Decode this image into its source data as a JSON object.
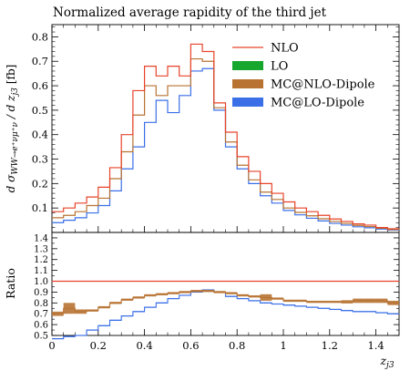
{
  "chart_data": {
    "type": "line",
    "title": "Normalized average rapidity of the third jet",
    "xlabel": "z_j3",
    "ylabel": "d σ_WW→e+νμ+ν / d z_j3 [fb]",
    "ratio_ylabel": "Ratio",
    "xlim": [
      0,
      1.5
    ],
    "ylim": [
      0,
      0.85
    ],
    "ratio_ylim": [
      0.5,
      1.45
    ],
    "x_ticks": [
      "0",
      "0.2",
      "0.4",
      "0.6",
      "0.8",
      "1",
      "1.2",
      "1.4"
    ],
    "x_tick_values": [
      0,
      0.2,
      0.4,
      0.6,
      0.8,
      1.0,
      1.2,
      1.4
    ],
    "y_ticks": [
      "0.1",
      "0.2",
      "0.3",
      "0.4",
      "0.5",
      "0.6",
      "0.7",
      "0.8"
    ],
    "y_tick_values": [
      0.1,
      0.2,
      0.3,
      0.4,
      0.5,
      0.6,
      0.7,
      0.8
    ],
    "ratio_ticks": [
      "0.5",
      "0.6",
      "0.7",
      "0.8",
      "0.9",
      "1.0",
      "1.1",
      "1.2",
      "1.3",
      "1.4"
    ],
    "ratio_tick_values": [
      0.5,
      0.6,
      0.7,
      0.8,
      0.9,
      1.0,
      1.1,
      1.2,
      1.3,
      1.4
    ],
    "legend_position": "top-right",
    "bin_edges": [
      0,
      0.05,
      0.1,
      0.15,
      0.2,
      0.25,
      0.3,
      0.35,
      0.4,
      0.45,
      0.5,
      0.55,
      0.6,
      0.65,
      0.7,
      0.75,
      0.8,
      0.85,
      0.9,
      0.95,
      1.0,
      1.05,
      1.1,
      1.15,
      1.2,
      1.25,
      1.3,
      1.35,
      1.4,
      1.45,
      1.5
    ],
    "series": [
      {
        "name": "NLO",
        "color": "#e8432a",
        "style": "step",
        "values": [
          0.085,
          0.1,
          0.12,
          0.145,
          0.185,
          0.265,
          0.4,
          0.58,
          0.68,
          0.64,
          0.68,
          0.64,
          0.77,
          0.74,
          0.53,
          0.41,
          0.31,
          0.25,
          0.2,
          0.16,
          0.125,
          0.1,
          0.085,
          0.07,
          0.055,
          0.045,
          0.035,
          0.03,
          0.02,
          0.015
        ]
      },
      {
        "name": "LO",
        "color": "#17a62e",
        "style": "band",
        "values": []
      },
      {
        "name": "MC@NLO-Dipole",
        "color": "#b87333",
        "style": "step-band",
        "values": [
          0.06,
          0.07,
          0.085,
          0.11,
          0.14,
          0.22,
          0.33,
          0.48,
          0.6,
          0.56,
          0.6,
          0.6,
          0.71,
          0.7,
          0.51,
          0.37,
          0.275,
          0.215,
          0.165,
          0.135,
          0.1,
          0.082,
          0.068,
          0.056,
          0.045,
          0.037,
          0.029,
          0.024,
          0.017,
          0.012
        ]
      },
      {
        "name": "MC@LO-Dipole",
        "color": "#3a6fe8",
        "style": "step-band",
        "values": [
          0.04,
          0.05,
          0.06,
          0.08,
          0.11,
          0.17,
          0.26,
          0.35,
          0.45,
          0.54,
          0.49,
          0.56,
          0.66,
          0.67,
          0.5,
          0.35,
          0.26,
          0.2,
          0.15,
          0.12,
          0.09,
          0.072,
          0.058,
          0.047,
          0.037,
          0.03,
          0.023,
          0.019,
          0.014,
          0.01
        ]
      }
    ],
    "ratio_series": [
      {
        "name": "MC@NLO-Dipole / NLO",
        "color": "#b87333",
        "values": [
          0.7,
          0.75,
          0.72,
          0.73,
          0.76,
          0.8,
          0.83,
          0.85,
          0.87,
          0.88,
          0.89,
          0.9,
          0.91,
          0.91,
          0.9,
          0.89,
          0.87,
          0.86,
          0.85,
          0.84,
          0.82,
          0.82,
          0.81,
          0.81,
          0.81,
          0.81,
          0.82,
          0.82,
          0.82,
          0.8
        ],
        "band": [
          0.02,
          0.05,
          0.02,
          0.01,
          0.01,
          0.01,
          0.01,
          0.01,
          0.01,
          0.01,
          0.01,
          0.01,
          0.01,
          0.01,
          0.01,
          0.01,
          0.01,
          0.01,
          0.03,
          0.01,
          0.01,
          0.01,
          0.01,
          0.01,
          0.01,
          0.015,
          0.02,
          0.02,
          0.02,
          0.02
        ]
      },
      {
        "name": "MC@LO-Dipole / NLO",
        "color": "#3a6fe8",
        "values": [
          0.47,
          0.49,
          0.5,
          0.55,
          0.59,
          0.64,
          0.68,
          0.72,
          0.76,
          0.8,
          0.84,
          0.87,
          0.9,
          0.92,
          0.9,
          0.86,
          0.84,
          0.82,
          0.8,
          0.79,
          0.78,
          0.77,
          0.76,
          0.75,
          0.74,
          0.73,
          0.72,
          0.72,
          0.71,
          0.7
        ],
        "band": [
          0.005,
          0.005,
          0.005,
          0.005,
          0.005,
          0.005,
          0.005,
          0.005,
          0.005,
          0.005,
          0.005,
          0.005,
          0.005,
          0.005,
          0.005,
          0.005,
          0.005,
          0.005,
          0.005,
          0.005,
          0.005,
          0.005,
          0.005,
          0.005,
          0.005,
          0.005,
          0.005,
          0.005,
          0.005,
          0.005
        ]
      }
    ],
    "ratio_reference": {
      "value": 1.0,
      "color": "#e8432a"
    }
  }
}
